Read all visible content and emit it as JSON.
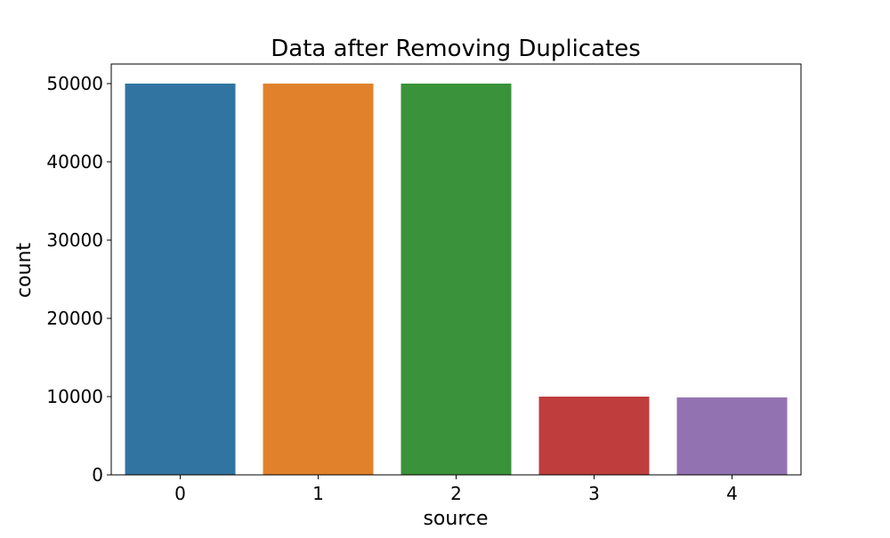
{
  "chart_data": {
    "type": "bar",
    "title": "Data after Removing Duplicates",
    "xlabel": "source",
    "ylabel": "count",
    "categories": [
      "0",
      "1",
      "2",
      "3",
      "4"
    ],
    "values": [
      50000,
      50000,
      50000,
      10000,
      9900
    ],
    "colors": [
      "#3274a1",
      "#e1812c",
      "#3a923a",
      "#c03d3e",
      "#9372b2"
    ],
    "yticks": [
      0,
      10000,
      20000,
      30000,
      40000,
      50000
    ],
    "ytick_labels": [
      "0",
      "10000",
      "20000",
      "30000",
      "40000",
      "50000"
    ],
    "ylim": [
      0,
      52500
    ],
    "grid": false,
    "legend": "none"
  }
}
